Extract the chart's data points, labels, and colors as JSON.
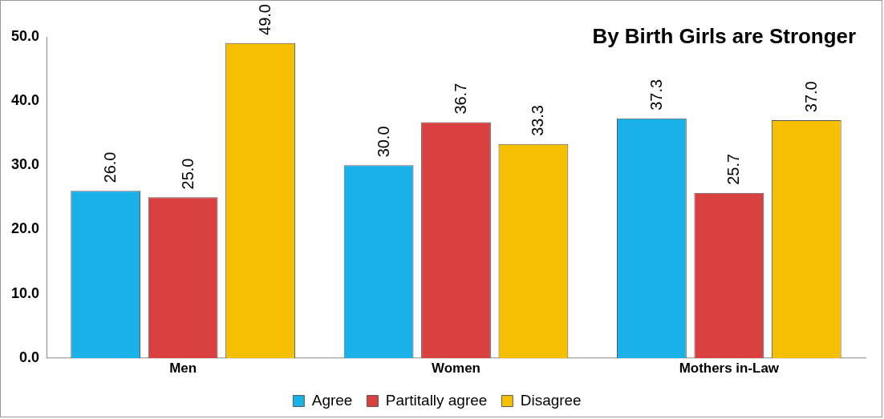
{
  "chart_data": {
    "type": "bar",
    "title": "By Birth Girls are Stronger",
    "categories": [
      "Men",
      "Women",
      "Mothers in-Law"
    ],
    "series": [
      {
        "name": "Agree",
        "color": "#1ab0e8",
        "values": [
          26.0,
          30.0,
          37.3
        ],
        "value_labels": [
          "26.0",
          "30.0",
          "37.3"
        ]
      },
      {
        "name": "Partitally agree",
        "color": "#d94141",
        "values": [
          25.0,
          36.7,
          25.7
        ],
        "value_labels": [
          "25.0",
          "36.7",
          "25.7"
        ]
      },
      {
        "name": "Disagree",
        "color": "#f5c000",
        "values": [
          49.0,
          33.3,
          37.0
        ],
        "value_labels": [
          "49.0",
          "33.3",
          "37.0"
        ]
      }
    ],
    "ylim": [
      0,
      50
    ],
    "yticks": [
      {
        "value": 0,
        "label": "0.0"
      },
      {
        "value": 10,
        "label": "10.0"
      },
      {
        "value": 20,
        "label": "20.0"
      },
      {
        "value": 30,
        "label": "30.0"
      },
      {
        "value": 40,
        "label": "40.0"
      },
      {
        "value": 50,
        "label": "50.0"
      }
    ],
    "grid": false,
    "legend": "bottom"
  }
}
